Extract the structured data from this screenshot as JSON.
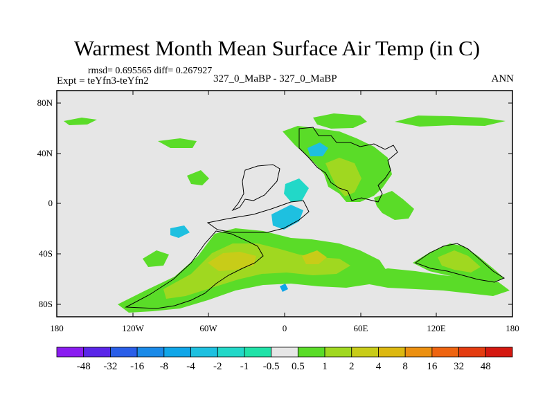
{
  "title": "Warmest Month Mean Surface Air Temp (in C)",
  "stats_line": "rmsd= 0.695565 diff= 0.267927",
  "expt_line": "Expt = teYfn3-teYfn2",
  "case_line": "327_0_MaBP - 327_0_MaBP",
  "period": "ANN",
  "axes": {
    "lat_ticks": [
      "80N",
      "40N",
      "0",
      "40S",
      "80S"
    ],
    "lat_values": [
      80,
      40,
      0,
      -40,
      -80
    ],
    "lon_ticks": [
      "180",
      "120W",
      "60W",
      "0",
      "60E",
      "120E",
      "180"
    ],
    "lon_values": [
      -180,
      -120,
      -60,
      0,
      60,
      120,
      180
    ],
    "lat_range": [
      -90,
      90
    ],
    "lon_range": [
      -180,
      180
    ]
  },
  "colorbar": {
    "labels": [
      "-48",
      "-32",
      "-16",
      "-8",
      "-4",
      "-2",
      "-1",
      "-0.5",
      "0.5",
      "1",
      "2",
      "4",
      "8",
      "16",
      "32",
      "48"
    ],
    "colors": [
      "#8a1cf0",
      "#5a26e8",
      "#2a5ee8",
      "#1a8ae8",
      "#10a6e8",
      "#1ec0e0",
      "#22d8c8",
      "#20e2a8",
      "#e6e6e6",
      "#5adc28",
      "#a0d820",
      "#c8cc18",
      "#dcb810",
      "#ec9010",
      "#ee6410",
      "#e43c10",
      "#d41810"
    ]
  }
}
